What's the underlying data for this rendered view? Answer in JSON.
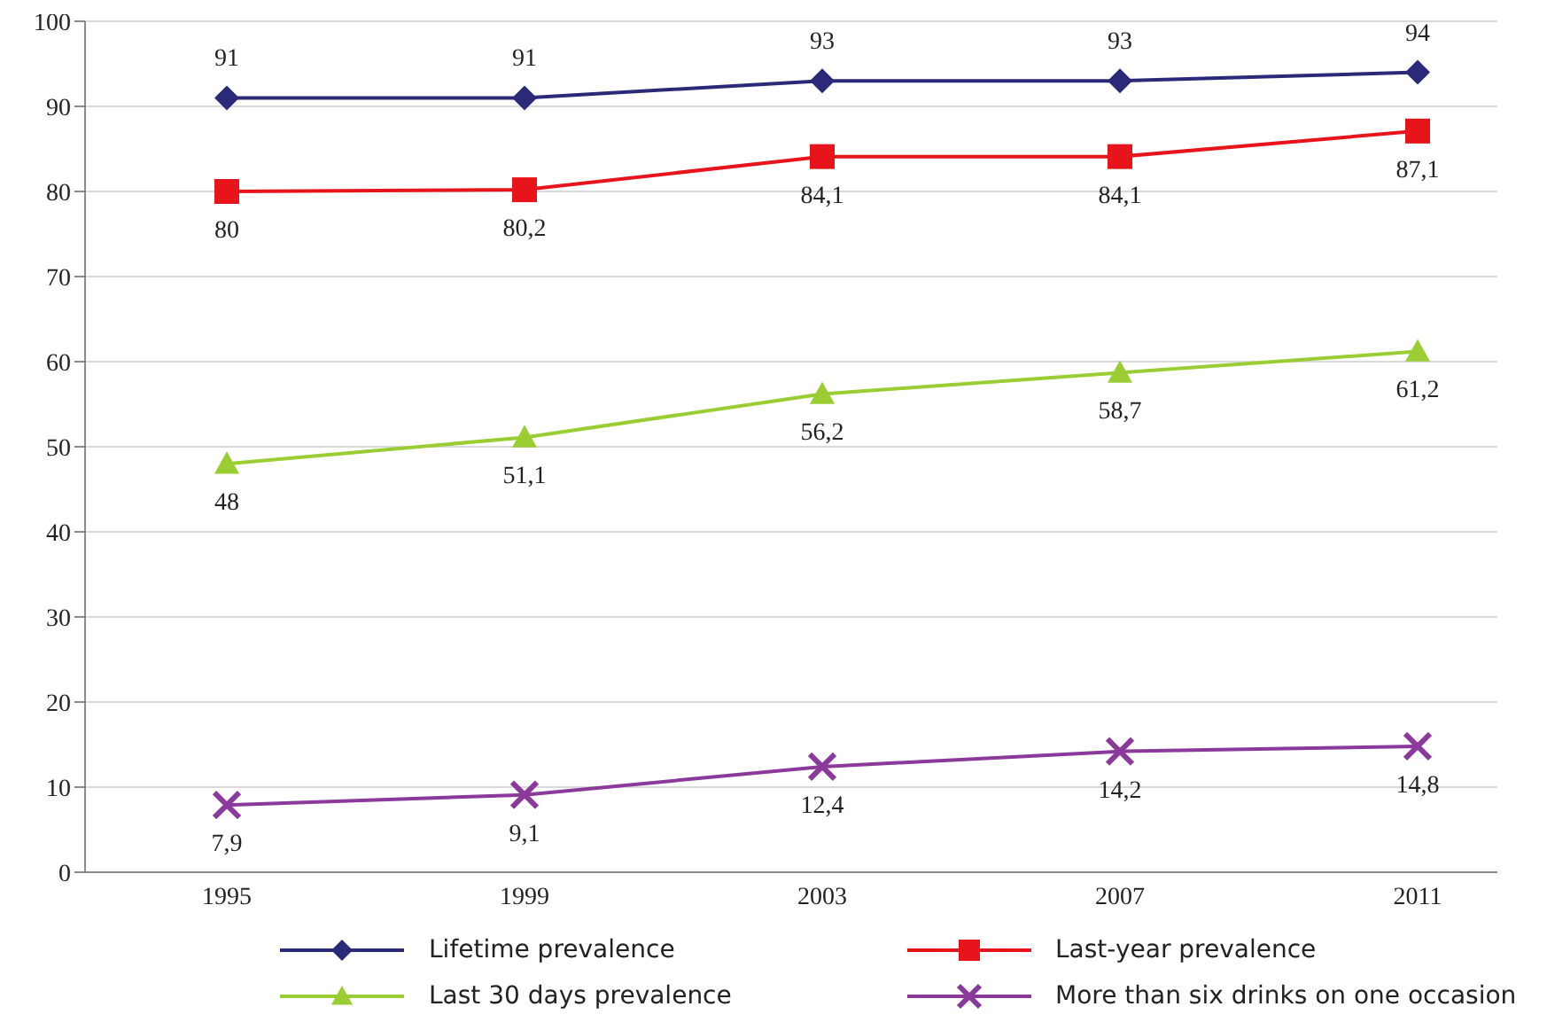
{
  "chart_data": {
    "type": "line",
    "categories": [
      "1995",
      "1999",
      "2003",
      "2007",
      "2011"
    ],
    "ylim": [
      0,
      100
    ],
    "yticks": [
      0,
      10,
      20,
      30,
      40,
      50,
      60,
      70,
      80,
      90,
      100
    ],
    "grid": "y",
    "legend": "bottom",
    "series": [
      {
        "name": "Lifetime prevalence",
        "color": "#2b2a78",
        "marker": "diamond",
        "values": [
          91,
          91,
          93,
          93,
          94
        ],
        "value_labels": [
          "91",
          "91",
          "93",
          "93",
          "94"
        ]
      },
      {
        "name": "Last-year prevalence",
        "color": "#e8141c",
        "marker": "square",
        "values": [
          80,
          80.2,
          84.1,
          84.1,
          87.1
        ],
        "value_labels": [
          "80",
          "80,2",
          "84,1",
          "84,1",
          "87,1"
        ]
      },
      {
        "name": "Last 30 days prevalence",
        "color": "#9acd32",
        "marker": "triangle",
        "values": [
          48,
          51.1,
          56.2,
          58.7,
          61.2
        ],
        "value_labels": [
          "48",
          "51,1",
          "56,2",
          "58,7",
          "61,2"
        ]
      },
      {
        "name": "More than six drinks on one occasion",
        "color": "#8b3a9c",
        "marker": "cross",
        "values": [
          7.9,
          9.1,
          12.4,
          14.2,
          14.8
        ],
        "value_labels": [
          "7,9",
          "9,1",
          "12,4",
          "14,2",
          "14,8"
        ]
      }
    ]
  }
}
